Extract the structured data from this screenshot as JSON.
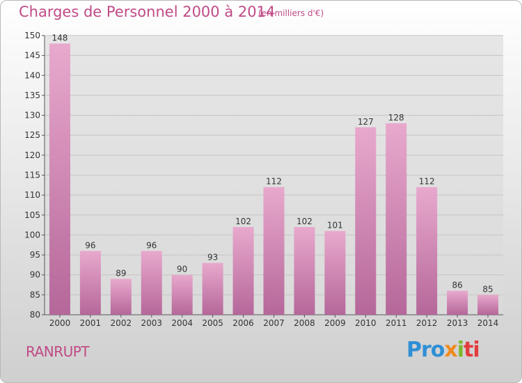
{
  "header": {
    "title": "Charges de Personnel 2000 à 2014",
    "subtitle": "(en milliers d'€)"
  },
  "footer": {
    "place": "RANRUPT",
    "logo": [
      "Pro",
      "x",
      "i",
      "ti"
    ]
  },
  "colors": {
    "bar_top": "#e8a9cd",
    "bar_bottom": "#b5679a",
    "title": "#c04a86",
    "grid": "#c4c4c4"
  },
  "chart_data": {
    "type": "bar",
    "categories": [
      "2000",
      "2001",
      "2002",
      "2003",
      "2004",
      "2005",
      "2006",
      "2007",
      "2008",
      "2009",
      "2010",
      "2011",
      "2012",
      "2013",
      "2014"
    ],
    "values": [
      148,
      96,
      89,
      96,
      90,
      93,
      102,
      112,
      102,
      101,
      127,
      128,
      112,
      86,
      85
    ],
    "ylim": [
      80,
      150
    ],
    "yticks": [
      80,
      85,
      90,
      95,
      100,
      105,
      110,
      115,
      120,
      125,
      130,
      135,
      140,
      145,
      150
    ],
    "grid": true,
    "data_labels": true
  }
}
